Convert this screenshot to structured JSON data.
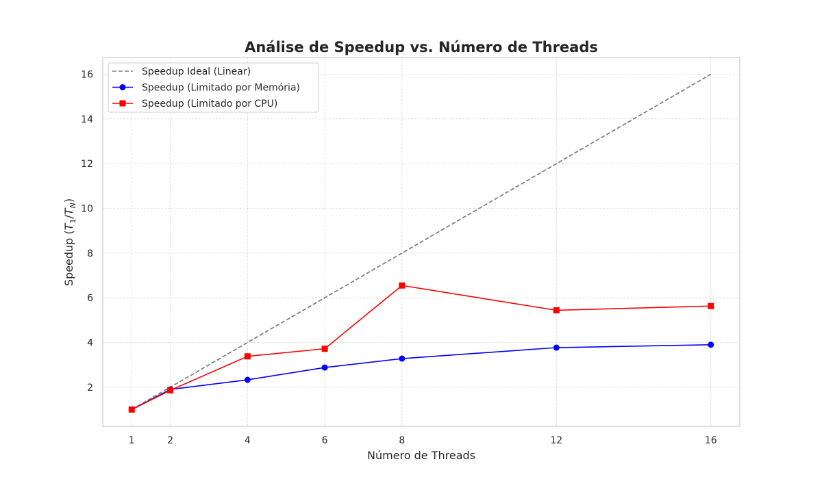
{
  "chart_data": {
    "type": "line",
    "title": "Análise de Speedup vs. Número de Threads",
    "xlabel": "Número de Threads",
    "ylabel": {
      "prefix": "Speedup (",
      "T": "T",
      "sub1": "1",
      "slash": "/",
      "TN": "T",
      "subN": "N",
      "suffix": ")"
    },
    "x": [
      1,
      2,
      4,
      6,
      8,
      12,
      16
    ],
    "x_ticks": [
      1,
      2,
      4,
      6,
      8,
      12,
      16
    ],
    "y_ticks": [
      2,
      4,
      6,
      8,
      10,
      12,
      14,
      16
    ],
    "xlim": [
      0.25,
      16.75
    ],
    "ylim": [
      0.25,
      16.75
    ],
    "grid": true,
    "legend_position": "top-left",
    "series": [
      {
        "name": "Speedup Ideal (Linear)",
        "values": [
          1,
          2,
          4,
          6,
          8,
          12,
          16
        ],
        "color": "#808080",
        "line_style": "dashed",
        "marker": "none"
      },
      {
        "name": "Speedup (Limitado por Memória)",
        "values": [
          1.0,
          1.9,
          2.33,
          2.88,
          3.28,
          3.77,
          3.9
        ],
        "color": "#0000ff",
        "line_style": "solid",
        "marker": "circle"
      },
      {
        "name": "Speedup (Limitado por CPU)",
        "values": [
          1.0,
          1.86,
          3.38,
          3.72,
          6.55,
          5.44,
          5.63
        ],
        "color": "#ff0000",
        "line_style": "solid",
        "marker": "square"
      }
    ]
  }
}
